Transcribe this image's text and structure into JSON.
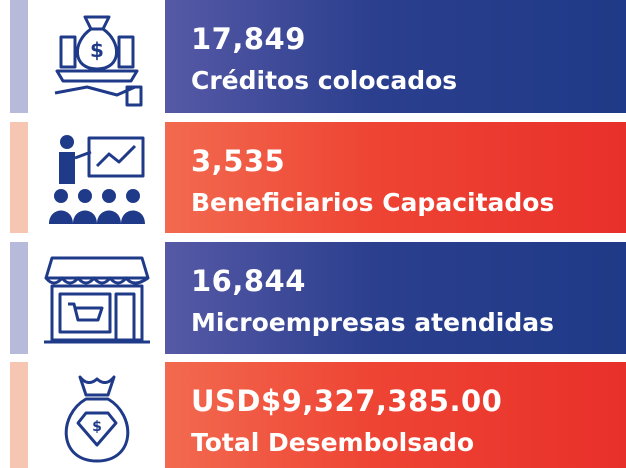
{
  "items": [
    {
      "value": "17,849",
      "label": "Créditos colocados"
    },
    {
      "value": "3,535",
      "label": "Beneficiarios Capacitados"
    },
    {
      "value": "16,844",
      "label": "Microempresas atendidas"
    },
    {
      "value": "USD$9,327,385.00",
      "label": "Total Desembolsado"
    }
  ]
}
